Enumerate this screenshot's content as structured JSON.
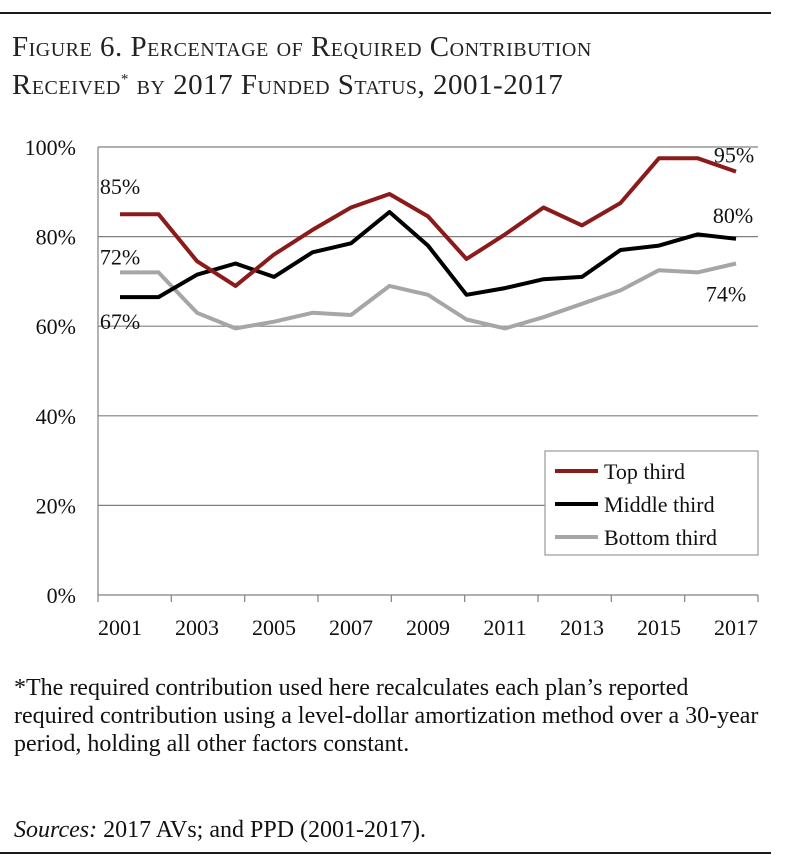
{
  "figure": {
    "title_line1": "Figure 6. Percentage of Required Contribution",
    "title_line2_a": "Received",
    "title_line2_sup": "*",
    "title_line2_b": " by 2017 Funded Status, 2001-2017"
  },
  "chart_data": {
    "type": "line",
    "x": [
      2001,
      2002,
      2003,
      2004,
      2005,
      2006,
      2007,
      2008,
      2009,
      2010,
      2011,
      2012,
      2013,
      2014,
      2015,
      2016,
      2017
    ],
    "x_tick_labels": [
      "2001",
      "2003",
      "2005",
      "2007",
      "2009",
      "2011",
      "2013",
      "2015",
      "2017"
    ],
    "y_tick_labels": [
      "0%",
      "20%",
      "40%",
      "60%",
      "80%",
      "100%"
    ],
    "ylim": [
      0,
      100
    ],
    "grid": "horizontal",
    "legend_position": "bottom-right",
    "series": [
      {
        "name": "Top third",
        "color": "#8b1a1a",
        "values": [
          85,
          85,
          74.5,
          69,
          76,
          81.5,
          86.5,
          89.5,
          84.5,
          75,
          80.5,
          86.5,
          82.5,
          87.5,
          97.5,
          97.5,
          94.5
        ]
      },
      {
        "name": "Middle third",
        "color": "#000000",
        "values": [
          66.5,
          66.5,
          71.5,
          74,
          71,
          76.5,
          78.5,
          85.5,
          78,
          67,
          68.5,
          70.5,
          71,
          77,
          78,
          80.5,
          79.5
        ]
      },
      {
        "name": "Bottom third",
        "color": "#a6a6a6",
        "values": [
          72,
          72,
          63,
          59.5,
          61,
          63,
          62.5,
          69,
          67,
          61.5,
          59.5,
          62,
          65,
          68,
          72.5,
          72,
          74
        ]
      }
    ],
    "annotations": [
      {
        "text": "85%",
        "series": 0,
        "point": 0
      },
      {
        "text": "72%",
        "series": 2,
        "point": 0
      },
      {
        "text": "67%",
        "series": 1,
        "point": 0
      },
      {
        "text": "95%",
        "series": 0,
        "point": 16
      },
      {
        "text": "80%",
        "series": 1,
        "point": 16
      },
      {
        "text": "74%",
        "series": 2,
        "point": 16
      }
    ]
  },
  "footnote": {
    "note": "*The required contribution used here recalculates each plan’s reported required contribution using a level-dollar amortization method over a 30-year period, holding all other factors constant.",
    "sources_label": "Sources:",
    "sources_text": " 2017 AVs; and PPD (2001-2017)."
  }
}
